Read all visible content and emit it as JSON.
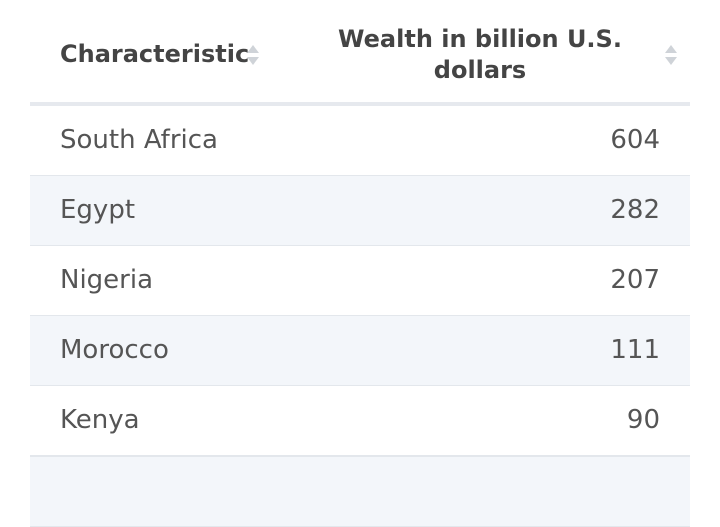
{
  "table": {
    "columns": [
      "Characteristic",
      "Wealth in billion U.S. dollars"
    ],
    "rows": [
      [
        "South Africa",
        604
      ],
      [
        "Egypt",
        282
      ],
      [
        "Nigeria",
        207
      ],
      [
        "Morocco",
        111
      ],
      [
        "Kenya",
        90
      ]
    ]
  }
}
